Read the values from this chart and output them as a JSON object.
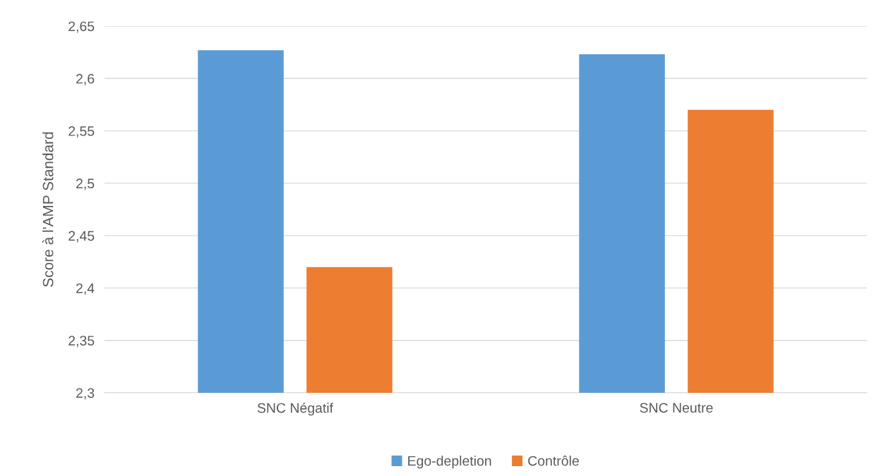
{
  "chart_data": {
    "type": "bar",
    "ylabel": "Score à l'AMP Standard",
    "categories": [
      "SNC Négatif",
      "SNC Neutre"
    ],
    "series": [
      {
        "name": "Ego-depletion",
        "color": "#5b9bd5",
        "values": [
          2.627,
          2.623
        ]
      },
      {
        "name": "Contrôle",
        "color": "#ed7d31",
        "values": [
          2.42,
          2.57
        ]
      }
    ],
    "ylim": [
      2.3,
      2.65
    ],
    "yticks": [
      {
        "value": 2.3,
        "label": "2,3"
      },
      {
        "value": 2.35,
        "label": "2,35"
      },
      {
        "value": 2.4,
        "label": "2,4"
      },
      {
        "value": 2.45,
        "label": "2,45"
      },
      {
        "value": 2.5,
        "label": "2,5"
      },
      {
        "value": 2.55,
        "label": "2,55"
      },
      {
        "value": 2.6,
        "label": "2,6"
      },
      {
        "value": 2.65,
        "label": "2,65"
      }
    ],
    "grid": "y",
    "legend": "bottom"
  }
}
